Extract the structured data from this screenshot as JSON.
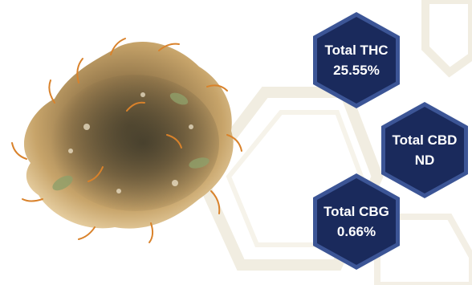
{
  "cannabinoids": {
    "thc": {
      "label": "Total THC",
      "value": "25.55%"
    },
    "cbd": {
      "label": "Total CBD",
      "value": "ND"
    },
    "cbg": {
      "label": "Total CBG",
      "value": "0.66%"
    }
  },
  "colors": {
    "hex_fill": "#1a2a5c",
    "hex_border": "#3c5596",
    "watermark": "#f1ede1"
  },
  "icons": [
    "cannabis-bud-image",
    "hexagon-badge"
  ]
}
